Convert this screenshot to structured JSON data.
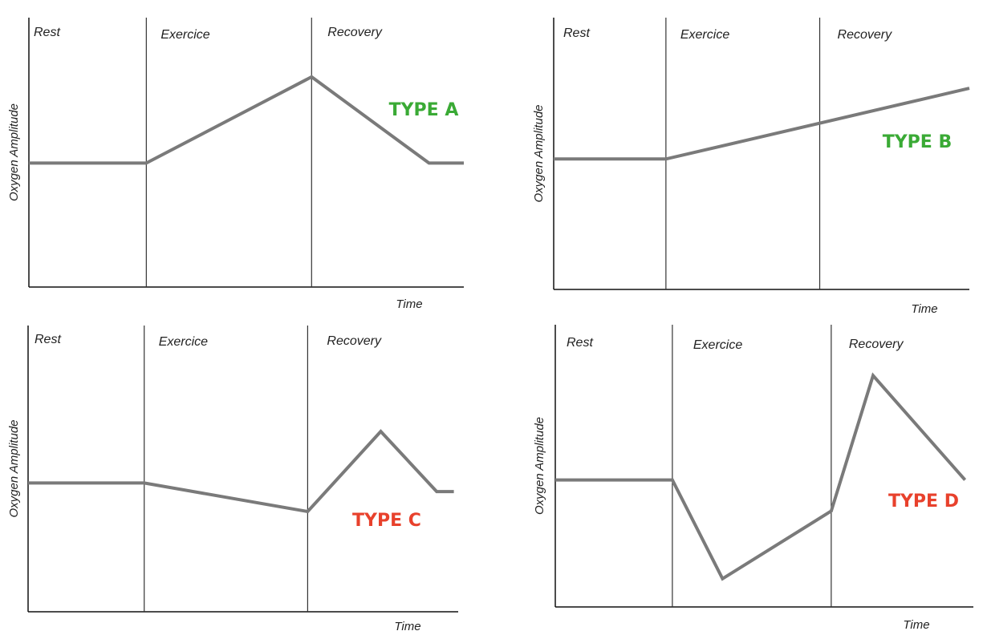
{
  "chart_data": [
    {
      "type": "line",
      "annotation": "TYPE A",
      "annotation_color": "#3aaa35",
      "phases": [
        "Rest",
        "Exercice",
        "Recovery"
      ],
      "xlabel": "Time",
      "ylabel": "Oxygen Amplitude",
      "xlim": [
        0,
        1
      ],
      "ylim": [
        0,
        1
      ],
      "phase_boundaries": [
        0.27,
        0.65
      ],
      "series": [
        {
          "x": [
            0,
            0.27,
            0.65,
            0.92,
            1.0
          ],
          "y": [
            0.46,
            0.46,
            0.78,
            0.46,
            0.46
          ]
        }
      ]
    },
    {
      "type": "line",
      "annotation": "TYPE B",
      "annotation_color": "#3aaa35",
      "phases": [
        "Rest",
        "Exercice",
        "Recovery"
      ],
      "xlabel": "Time",
      "ylabel": "Oxygen Amplitude",
      "xlim": [
        0,
        1
      ],
      "ylim": [
        0,
        1
      ],
      "phase_boundaries": [
        0.27,
        0.64
      ],
      "series": [
        {
          "x": [
            0,
            0.27,
            1.0
          ],
          "y": [
            0.48,
            0.48,
            0.74
          ]
        }
      ]
    },
    {
      "type": "line",
      "annotation": "TYPE C",
      "annotation_color": "#e8412c",
      "phases": [
        "Rest",
        "Exercice",
        "Recovery"
      ],
      "xlabel": "Time",
      "ylabel": "Oxygen Amplitude",
      "xlim": [
        0,
        1
      ],
      "ylim": [
        0,
        1
      ],
      "phase_boundaries": [
        0.27,
        0.65
      ],
      "series": [
        {
          "x": [
            0,
            0.27,
            0.65,
            0.82,
            0.95,
            0.99
          ],
          "y": [
            0.45,
            0.45,
            0.35,
            0.63,
            0.42,
            0.42
          ]
        }
      ]
    },
    {
      "type": "line",
      "annotation": "TYPE D",
      "annotation_color": "#e8412c",
      "phases": [
        "Rest",
        "Exercice",
        "Recovery"
      ],
      "xlabel": "Time",
      "ylabel": "Oxygen Amplitude",
      "xlim": [
        0,
        1
      ],
      "ylim": [
        0,
        1
      ],
      "phase_boundaries": [
        0.28,
        0.66
      ],
      "series": [
        {
          "x": [
            0,
            0.28,
            0.4,
            0.66,
            0.76,
            0.98
          ],
          "y": [
            0.45,
            0.45,
            0.1,
            0.34,
            0.82,
            0.45
          ]
        }
      ]
    }
  ]
}
